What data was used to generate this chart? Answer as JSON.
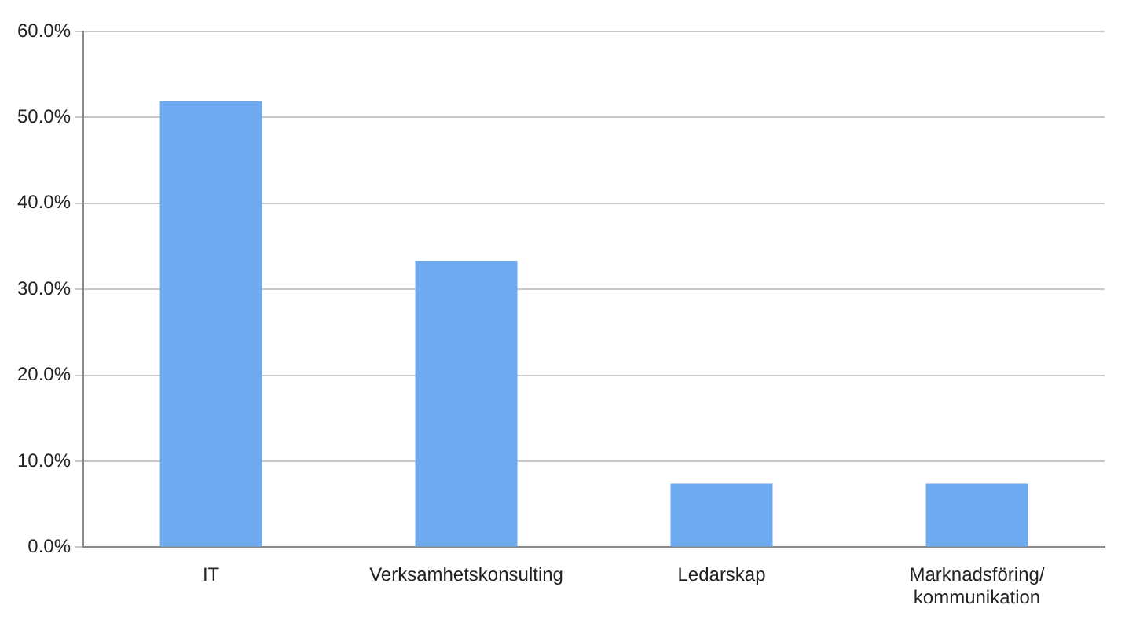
{
  "chart_data": {
    "type": "bar",
    "categories": [
      "IT",
      "Verksamhetskonsulting",
      "Ledarskap",
      "Marknadsföring/kommunikation"
    ],
    "values": [
      51.9,
      33.3,
      7.4,
      7.4
    ],
    "color": "#6eaaf0",
    "ylim": [
      0,
      60
    ],
    "yticks": [
      {
        "value": 0,
        "label": "0.0%"
      },
      {
        "value": 10,
        "label": "10.0%"
      },
      {
        "value": 20,
        "label": "20.0%"
      },
      {
        "value": 30,
        "label": "30.0%"
      },
      {
        "value": 40,
        "label": "40.0%"
      },
      {
        "value": 50,
        "label": "50.0%"
      },
      {
        "value": 60,
        "label": "60.0%"
      }
    ],
    "grid": "y",
    "legend": false
  }
}
